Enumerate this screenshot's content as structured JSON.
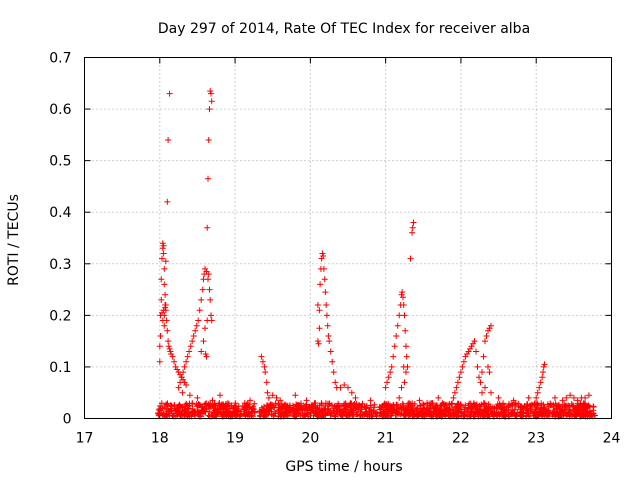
{
  "chart_data": {
    "type": "scatter",
    "title": "Day 297 of 2014, Rate Of TEC Index for receiver alba",
    "xlabel": "GPS time / hours",
    "ylabel": "ROTI / TECUs",
    "xlim": [
      17,
      24
    ],
    "ylim": [
      0,
      0.7
    ],
    "xticks": [
      17,
      18,
      19,
      20,
      21,
      22,
      23,
      24
    ],
    "xtick_labels": [
      "17",
      "18",
      "19",
      "20",
      "21",
      "22",
      "23",
      "24"
    ],
    "yticks": [
      0,
      0.1,
      0.2,
      0.3,
      0.4,
      0.5,
      0.6,
      0.7
    ],
    "ytick_labels": [
      "0",
      "0.1",
      "0.2",
      "0.3",
      "0.4",
      "0.5",
      "0.6",
      "0.7"
    ],
    "grid": true,
    "marker": "+",
    "color": "#ff0000",
    "series": [
      {
        "name": "ROTI",
        "points": [
          [
            18.0,
            0.11
          ],
          [
            18.0,
            0.14
          ],
          [
            18.01,
            0.16
          ],
          [
            18.01,
            0.2
          ],
          [
            18.02,
            0.23
          ],
          [
            18.02,
            0.27
          ],
          [
            18.03,
            0.31
          ],
          [
            18.04,
            0.33
          ],
          [
            18.04,
            0.34
          ],
          [
            18.05,
            0.335
          ],
          [
            18.05,
            0.32
          ],
          [
            18.06,
            0.29
          ],
          [
            18.06,
            0.26
          ],
          [
            18.07,
            0.24
          ],
          [
            18.07,
            0.22
          ],
          [
            18.08,
            0.21
          ],
          [
            18.08,
            0.305
          ],
          [
            18.09,
            0.19
          ],
          [
            18.1,
            0.17
          ],
          [
            18.11,
            0.15
          ],
          [
            18.12,
            0.14
          ],
          [
            18.13,
            0.135
          ],
          [
            18.14,
            0.13
          ],
          [
            18.15,
            0.125
          ],
          [
            18.17,
            0.12
          ],
          [
            18.19,
            0.11
          ],
          [
            18.21,
            0.1
          ],
          [
            18.23,
            0.095
          ],
          [
            18.25,
            0.09
          ],
          [
            18.27,
            0.085
          ],
          [
            18.29,
            0.08
          ],
          [
            18.31,
            0.075
          ],
          [
            18.33,
            0.07
          ],
          [
            18.35,
            0.065
          ],
          [
            18.03,
            0.205
          ],
          [
            18.05,
            0.21
          ],
          [
            18.06,
            0.2
          ],
          [
            18.07,
            0.215
          ],
          [
            18.08,
            0.22
          ],
          [
            18.04,
            0.19
          ],
          [
            18.06,
            0.18
          ],
          [
            18.1,
            0.42
          ],
          [
            18.11,
            0.54
          ],
          [
            18.13,
            0.63
          ],
          [
            18.25,
            0.06
          ],
          [
            18.27,
            0.07
          ],
          [
            18.29,
            0.08
          ],
          [
            18.31,
            0.09
          ],
          [
            18.33,
            0.1
          ],
          [
            18.35,
            0.11
          ],
          [
            18.37,
            0.12
          ],
          [
            18.39,
            0.13
          ],
          [
            18.41,
            0.14
          ],
          [
            18.43,
            0.15
          ],
          [
            18.45,
            0.16
          ],
          [
            18.47,
            0.17
          ],
          [
            18.49,
            0.18
          ],
          [
            18.51,
            0.19
          ],
          [
            18.53,
            0.21
          ],
          [
            18.55,
            0.23
          ],
          [
            18.57,
            0.25
          ],
          [
            18.58,
            0.27
          ],
          [
            18.59,
            0.28
          ],
          [
            18.6,
            0.29
          ],
          [
            18.62,
            0.285
          ],
          [
            18.64,
            0.27
          ],
          [
            18.66,
            0.25
          ],
          [
            18.67,
            0.23
          ],
          [
            18.68,
            0.2
          ],
          [
            18.69,
            0.19
          ],
          [
            18.55,
            0.13
          ],
          [
            18.58,
            0.15
          ],
          [
            18.6,
            0.175
          ],
          [
            18.61,
            0.125
          ],
          [
            18.62,
            0.12
          ],
          [
            18.63,
            0.19
          ],
          [
            18.65,
            0.28
          ],
          [
            18.63,
            0.37
          ],
          [
            18.64,
            0.465
          ],
          [
            18.65,
            0.54
          ],
          [
            18.66,
            0.6
          ],
          [
            18.67,
            0.635
          ],
          [
            18.68,
            0.63
          ],
          [
            18.69,
            0.615
          ],
          [
            19.35,
            0.12
          ],
          [
            19.37,
            0.11
          ],
          [
            19.39,
            0.1
          ],
          [
            19.4,
            0.09
          ],
          [
            19.42,
            0.07
          ],
          [
            19.43,
            0.05
          ],
          [
            19.45,
            0.04
          ],
          [
            19.5,
            0.045
          ],
          [
            19.55,
            0.04
          ],
          [
            19.6,
            0.035
          ],
          [
            20.1,
            0.22
          ],
          [
            20.1,
            0.15
          ],
          [
            20.11,
            0.145
          ],
          [
            20.12,
            0.175
          ],
          [
            20.12,
            0.21
          ],
          [
            20.13,
            0.26
          ],
          [
            20.14,
            0.29
          ],
          [
            20.15,
            0.31
          ],
          [
            20.16,
            0.32
          ],
          [
            20.17,
            0.315
          ],
          [
            20.18,
            0.29
          ],
          [
            20.19,
            0.27
          ],
          [
            20.2,
            0.245
          ],
          [
            20.21,
            0.22
          ],
          [
            20.22,
            0.2
          ],
          [
            20.23,
            0.18
          ],
          [
            20.24,
            0.16
          ],
          [
            20.25,
            0.15
          ],
          [
            20.27,
            0.13
          ],
          [
            20.29,
            0.11
          ],
          [
            20.31,
            0.09
          ],
          [
            20.33,
            0.07
          ],
          [
            20.35,
            0.06
          ],
          [
            20.4,
            0.06
          ],
          [
            20.45,
            0.065
          ],
          [
            20.5,
            0.06
          ],
          [
            20.55,
            0.05
          ],
          [
            21.0,
            0.06
          ],
          [
            21.02,
            0.07
          ],
          [
            21.04,
            0.08
          ],
          [
            21.06,
            0.09
          ],
          [
            21.08,
            0.1
          ],
          [
            21.1,
            0.12
          ],
          [
            21.12,
            0.14
          ],
          [
            21.14,
            0.16
          ],
          [
            21.16,
            0.18
          ],
          [
            21.18,
            0.2
          ],
          [
            21.2,
            0.22
          ],
          [
            21.21,
            0.24
          ],
          [
            21.22,
            0.245
          ],
          [
            21.23,
            0.235
          ],
          [
            21.24,
            0.22
          ],
          [
            21.25,
            0.2
          ],
          [
            21.26,
            0.17
          ],
          [
            21.27,
            0.14
          ],
          [
            21.28,
            0.12
          ],
          [
            21.29,
            0.1
          ],
          [
            21.18,
            0.04
          ],
          [
            21.21,
            0.06
          ],
          [
            21.24,
            0.1
          ],
          [
            21.25,
            0.07
          ],
          [
            21.27,
            0.09
          ],
          [
            21.33,
            0.31
          ],
          [
            21.35,
            0.36
          ],
          [
            21.36,
            0.37
          ],
          [
            21.37,
            0.38
          ],
          [
            21.9,
            0.04
          ],
          [
            21.92,
            0.05
          ],
          [
            21.94,
            0.06
          ],
          [
            21.96,
            0.07
          ],
          [
            21.98,
            0.08
          ],
          [
            22.0,
            0.09
          ],
          [
            22.02,
            0.1
          ],
          [
            22.04,
            0.11
          ],
          [
            22.06,
            0.12
          ],
          [
            22.08,
            0.125
          ],
          [
            22.1,
            0.13
          ],
          [
            22.12,
            0.135
          ],
          [
            22.14,
            0.14
          ],
          [
            22.16,
            0.145
          ],
          [
            22.18,
            0.15
          ],
          [
            22.2,
            0.13
          ],
          [
            22.22,
            0.1
          ],
          [
            22.24,
            0.08
          ],
          [
            22.26,
            0.07
          ],
          [
            22.28,
            0.09
          ],
          [
            22.3,
            0.12
          ],
          [
            22.32,
            0.15
          ],
          [
            22.34,
            0.16
          ],
          [
            22.36,
            0.17
          ],
          [
            22.38,
            0.175
          ],
          [
            22.4,
            0.18
          ],
          [
            22.28,
            0.05
          ],
          [
            22.32,
            0.06
          ],
          [
            22.36,
            0.1
          ],
          [
            22.38,
            0.09
          ],
          [
            22.4,
            0.05
          ],
          [
            23.0,
            0.04
          ],
          [
            23.02,
            0.05
          ],
          [
            23.04,
            0.06
          ],
          [
            23.06,
            0.07
          ],
          [
            23.08,
            0.08
          ],
          [
            23.09,
            0.09
          ],
          [
            23.1,
            0.1
          ],
          [
            23.11,
            0.105
          ],
          [
            23.35,
            0.035
          ],
          [
            23.4,
            0.04
          ],
          [
            23.45,
            0.045
          ],
          [
            23.5,
            0.04
          ],
          [
            23.55,
            0.035
          ],
          [
            23.6,
            0.04
          ],
          [
            23.7,
            0.045
          ],
          [
            18.3,
            0.05
          ],
          [
            18.4,
            0.045
          ],
          [
            18.5,
            0.04
          ],
          [
            18.7,
            0.035
          ],
          [
            18.8,
            0.045
          ],
          [
            19.2,
            0.035
          ],
          [
            19.8,
            0.045
          ],
          [
            19.95,
            0.035
          ],
          [
            20.6,
            0.04
          ],
          [
            20.8,
            0.035
          ],
          [
            21.45,
            0.035
          ],
          [
            21.55,
            0.03
          ],
          [
            21.7,
            0.04
          ],
          [
            22.5,
            0.04
          ],
          [
            22.7,
            0.035
          ],
          [
            22.9,
            0.04
          ],
          [
            23.25,
            0.04
          ],
          [
            23.65,
            0.04
          ]
        ]
      }
    ],
    "dense_band": {
      "description": "near-zero background scatter",
      "segments": [
        [
          17.97,
          19.27
        ],
        [
          19.32,
          23.78
        ]
      ],
      "y_range": [
        0.004,
        0.03
      ]
    }
  }
}
